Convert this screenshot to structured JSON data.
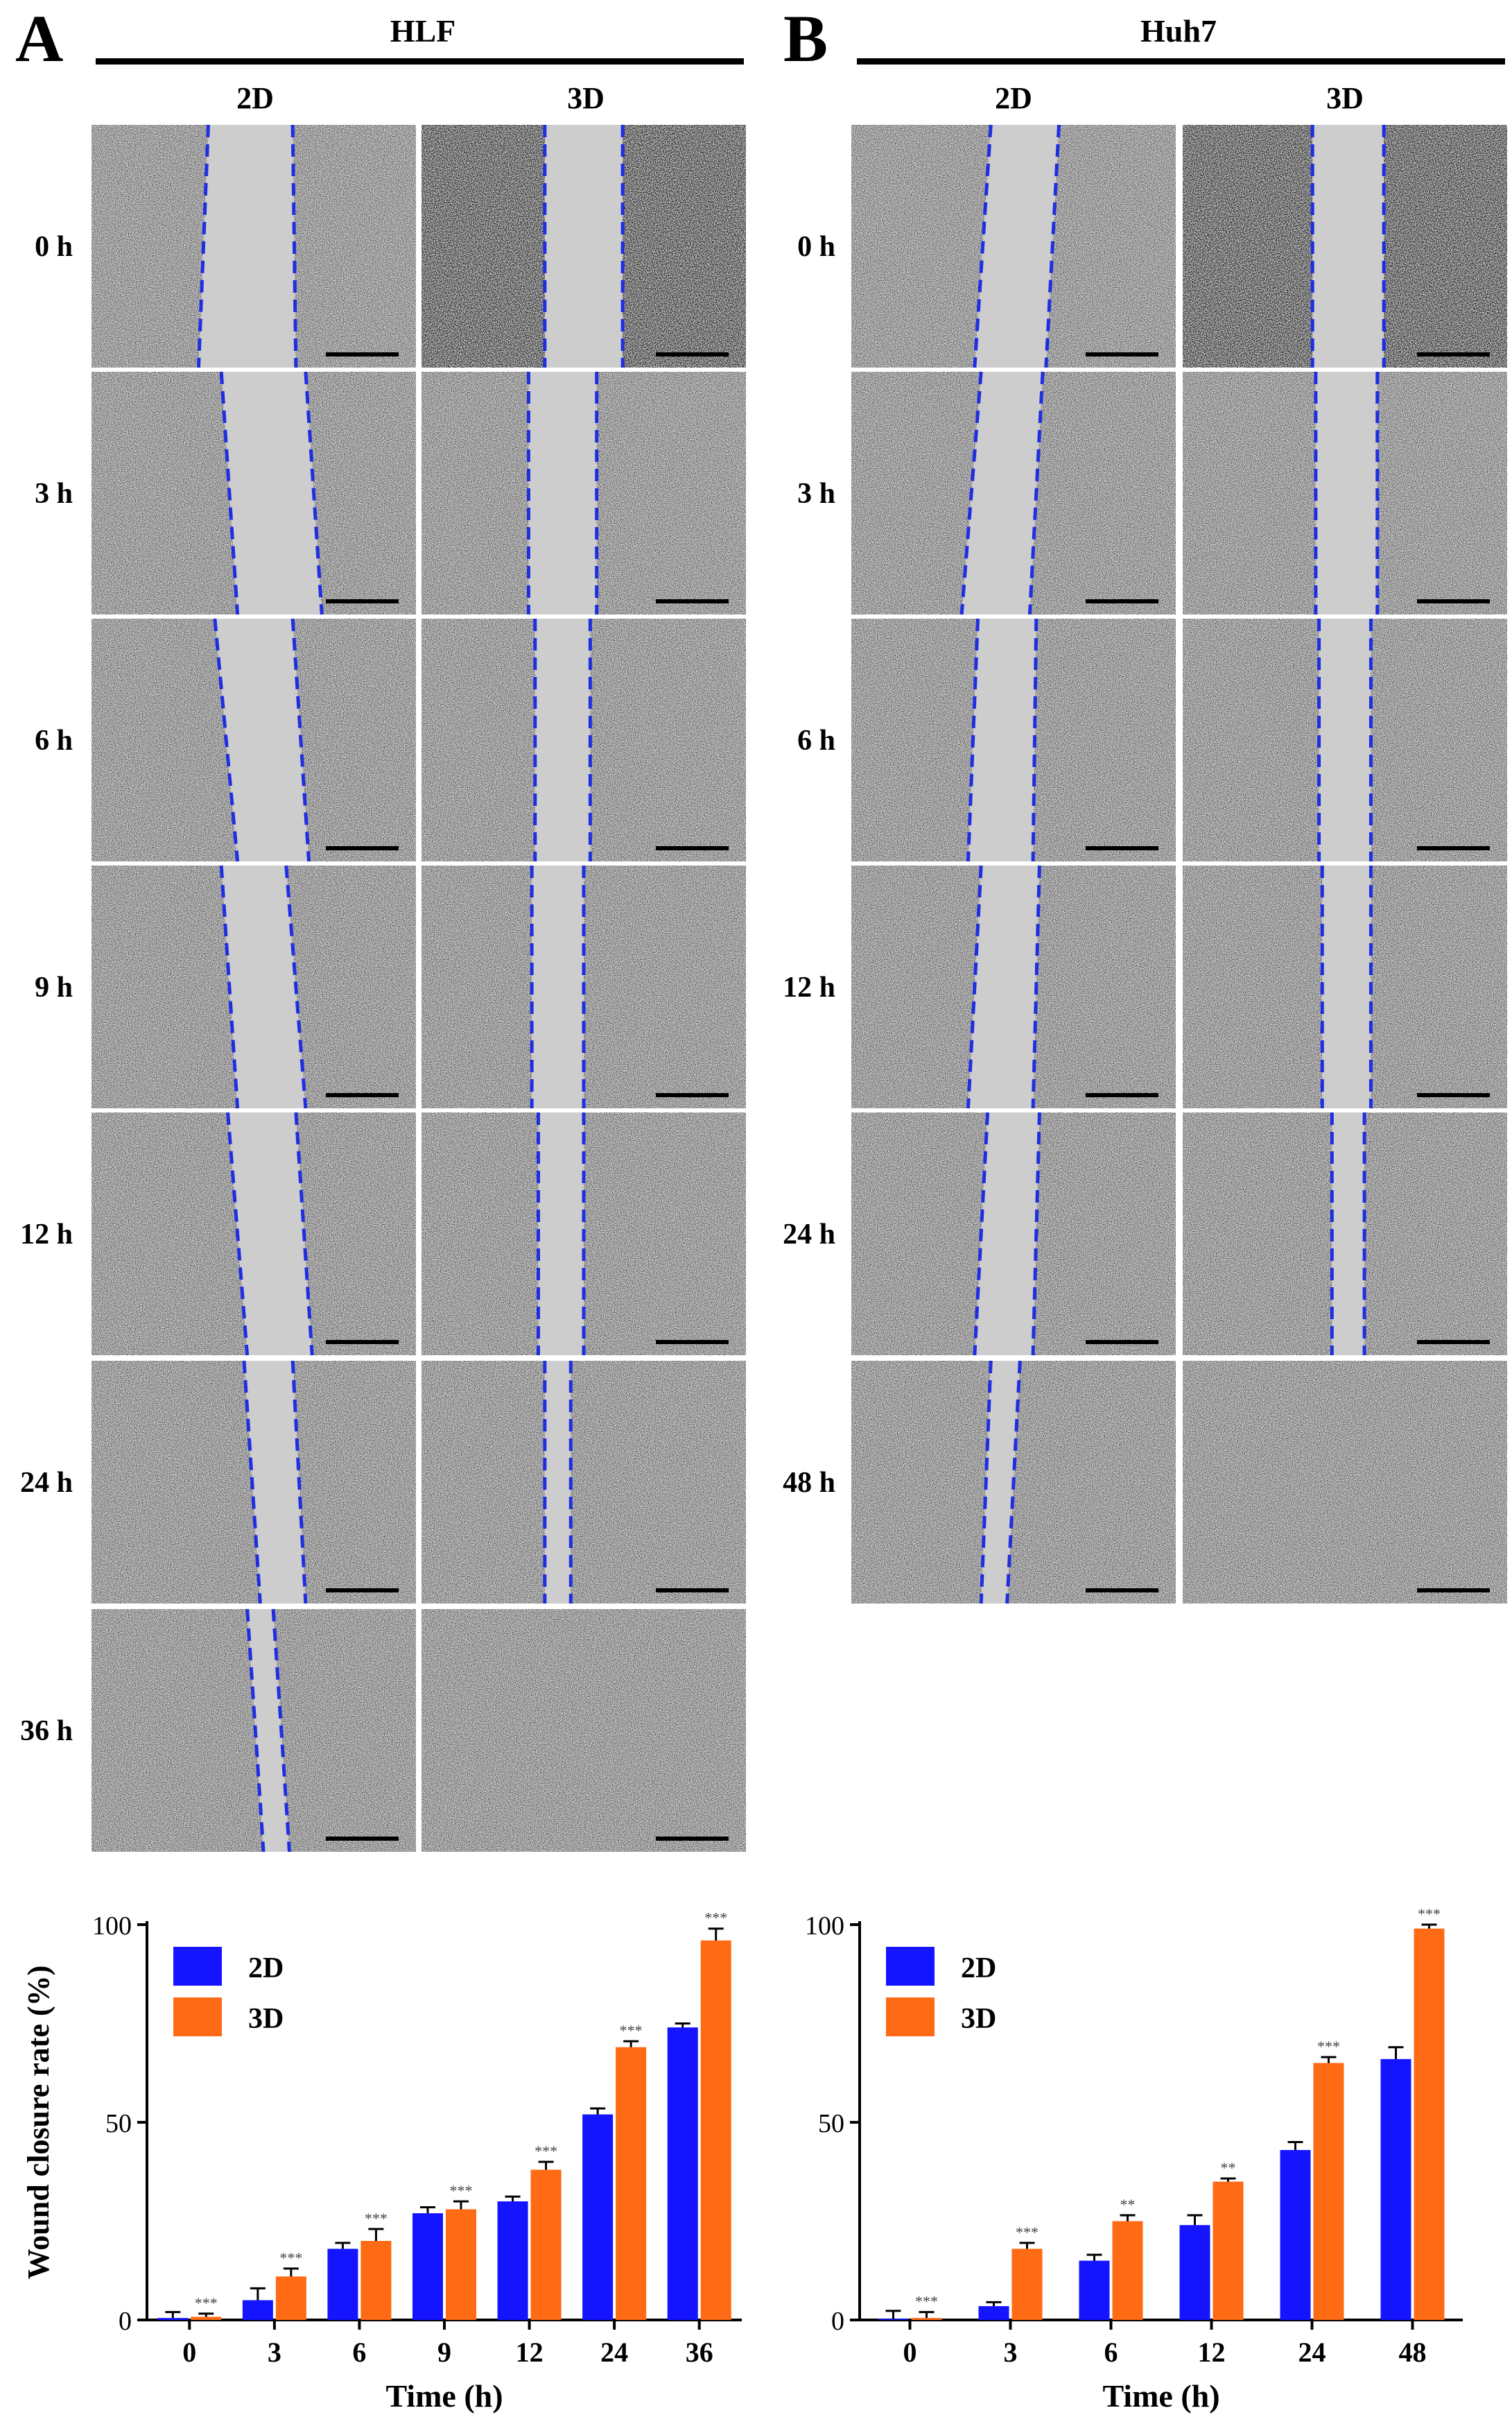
{
  "panels": [
    {
      "letter": "A",
      "cell_line": "HLF",
      "columns": [
        "2D",
        "3D"
      ],
      "rows": [
        {
          "time": "0 h",
          "gap2d": [
            0.36,
            0.62,
            0.33,
            0.63
          ],
          "gap3d": [
            0.38,
            0.62,
            0.38,
            0.62
          ]
        },
        {
          "time": "3 h",
          "gap2d": [
            0.4,
            0.66,
            0.45,
            0.71
          ],
          "gap3d": [
            0.33,
            0.54,
            0.33,
            0.54
          ]
        },
        {
          "time": "6 h",
          "gap2d": [
            0.38,
            0.62,
            0.45,
            0.67
          ],
          "gap3d": [
            0.35,
            0.52,
            0.35,
            0.52
          ]
        },
        {
          "time": "9 h",
          "gap2d": [
            0.4,
            0.6,
            0.45,
            0.66
          ],
          "gap3d": [
            0.34,
            0.5,
            0.34,
            0.5
          ]
        },
        {
          "time": "12 h",
          "gap2d": [
            0.42,
            0.63,
            0.48,
            0.68
          ],
          "gap3d": [
            0.36,
            0.5,
            0.36,
            0.5
          ]
        },
        {
          "time": "24 h",
          "gap2d": [
            0.47,
            0.62,
            0.52,
            0.66
          ],
          "gap3d": [
            0.38,
            0.46,
            0.38,
            0.46
          ]
        },
        {
          "time": "36 h",
          "gap2d": [
            0.48,
            0.56,
            0.53,
            0.61
          ],
          "gap3d": null
        }
      ]
    },
    {
      "letter": "B",
      "cell_line": "Huh7",
      "columns": [
        "2D",
        "3D"
      ],
      "rows": [
        {
          "time": "0 h",
          "gap2d": [
            0.43,
            0.64,
            0.38,
            0.6
          ],
          "gap3d": [
            0.4,
            0.62,
            0.4,
            0.62
          ]
        },
        {
          "time": "3 h",
          "gap2d": [
            0.4,
            0.59,
            0.34,
            0.55
          ],
          "gap3d": [
            0.41,
            0.6,
            0.41,
            0.6
          ]
        },
        {
          "time": "6 h",
          "gap2d": [
            0.39,
            0.57,
            0.36,
            0.56
          ],
          "gap3d": [
            0.42,
            0.58,
            0.42,
            0.58
          ]
        },
        {
          "time": "12 h",
          "gap2d": [
            0.4,
            0.58,
            0.36,
            0.56
          ],
          "gap3d": [
            0.43,
            0.58,
            0.43,
            0.58
          ]
        },
        {
          "time": "24 h",
          "gap2d": [
            0.42,
            0.58,
            0.38,
            0.56
          ],
          "gap3d": [
            0.46,
            0.56,
            0.46,
            0.56
          ]
        },
        {
          "time": "48 h",
          "gap2d": [
            0.43,
            0.52,
            0.4,
            0.48
          ],
          "gap3d": null
        }
      ]
    }
  ],
  "colors": {
    "series_2d": "#1414ff",
    "series_3d": "#ff6a14",
    "dashed_line": "#1f2fe0",
    "micro_bg": "#d4d4d4"
  },
  "chart_data": [
    {
      "type": "bar",
      "categories": [
        "0",
        "3",
        "6",
        "9",
        "12",
        "24",
        "36"
      ],
      "series": [
        {
          "name": "2D",
          "values": [
            0.5,
            5,
            18,
            27,
            30,
            52,
            74
          ],
          "errors": [
            1.5,
            3,
            1.5,
            1.5,
            1.2,
            1.5,
            1
          ]
        },
        {
          "name": "3D",
          "values": [
            0.8,
            11,
            20,
            28,
            38,
            69,
            96
          ],
          "errors": [
            0.8,
            2,
            3,
            2,
            2,
            1.5,
            3
          ]
        }
      ],
      "significance": [
        "***",
        "***",
        "***",
        "***",
        "***",
        "***",
        "***"
      ],
      "xlabel": "Time (h)",
      "ylabel": "Wound closure rate (%)",
      "ylim": [
        0,
        100
      ],
      "yticks": [
        0,
        50,
        100
      ],
      "legend_position": "top-left"
    },
    {
      "type": "bar",
      "categories": [
        "0",
        "3",
        "6",
        "12",
        "24",
        "48"
      ],
      "series": [
        {
          "name": "2D",
          "values": [
            0.3,
            3.5,
            15,
            24,
            43,
            66
          ],
          "errors": [
            2,
            1,
            1.5,
            2.5,
            2,
            3
          ]
        },
        {
          "name": "3D",
          "values": [
            0.5,
            18,
            25,
            35,
            65,
            99
          ],
          "errors": [
            1.5,
            1.5,
            1.5,
            0.8,
            1.5,
            1
          ]
        }
      ],
      "significance": [
        "***",
        "***",
        "**",
        "**",
        "***",
        "***"
      ],
      "xlabel": "Time (h)",
      "ylabel": "",
      "ylim": [
        0,
        100
      ],
      "yticks": [
        0,
        50,
        100
      ],
      "legend_position": "top-left"
    }
  ]
}
